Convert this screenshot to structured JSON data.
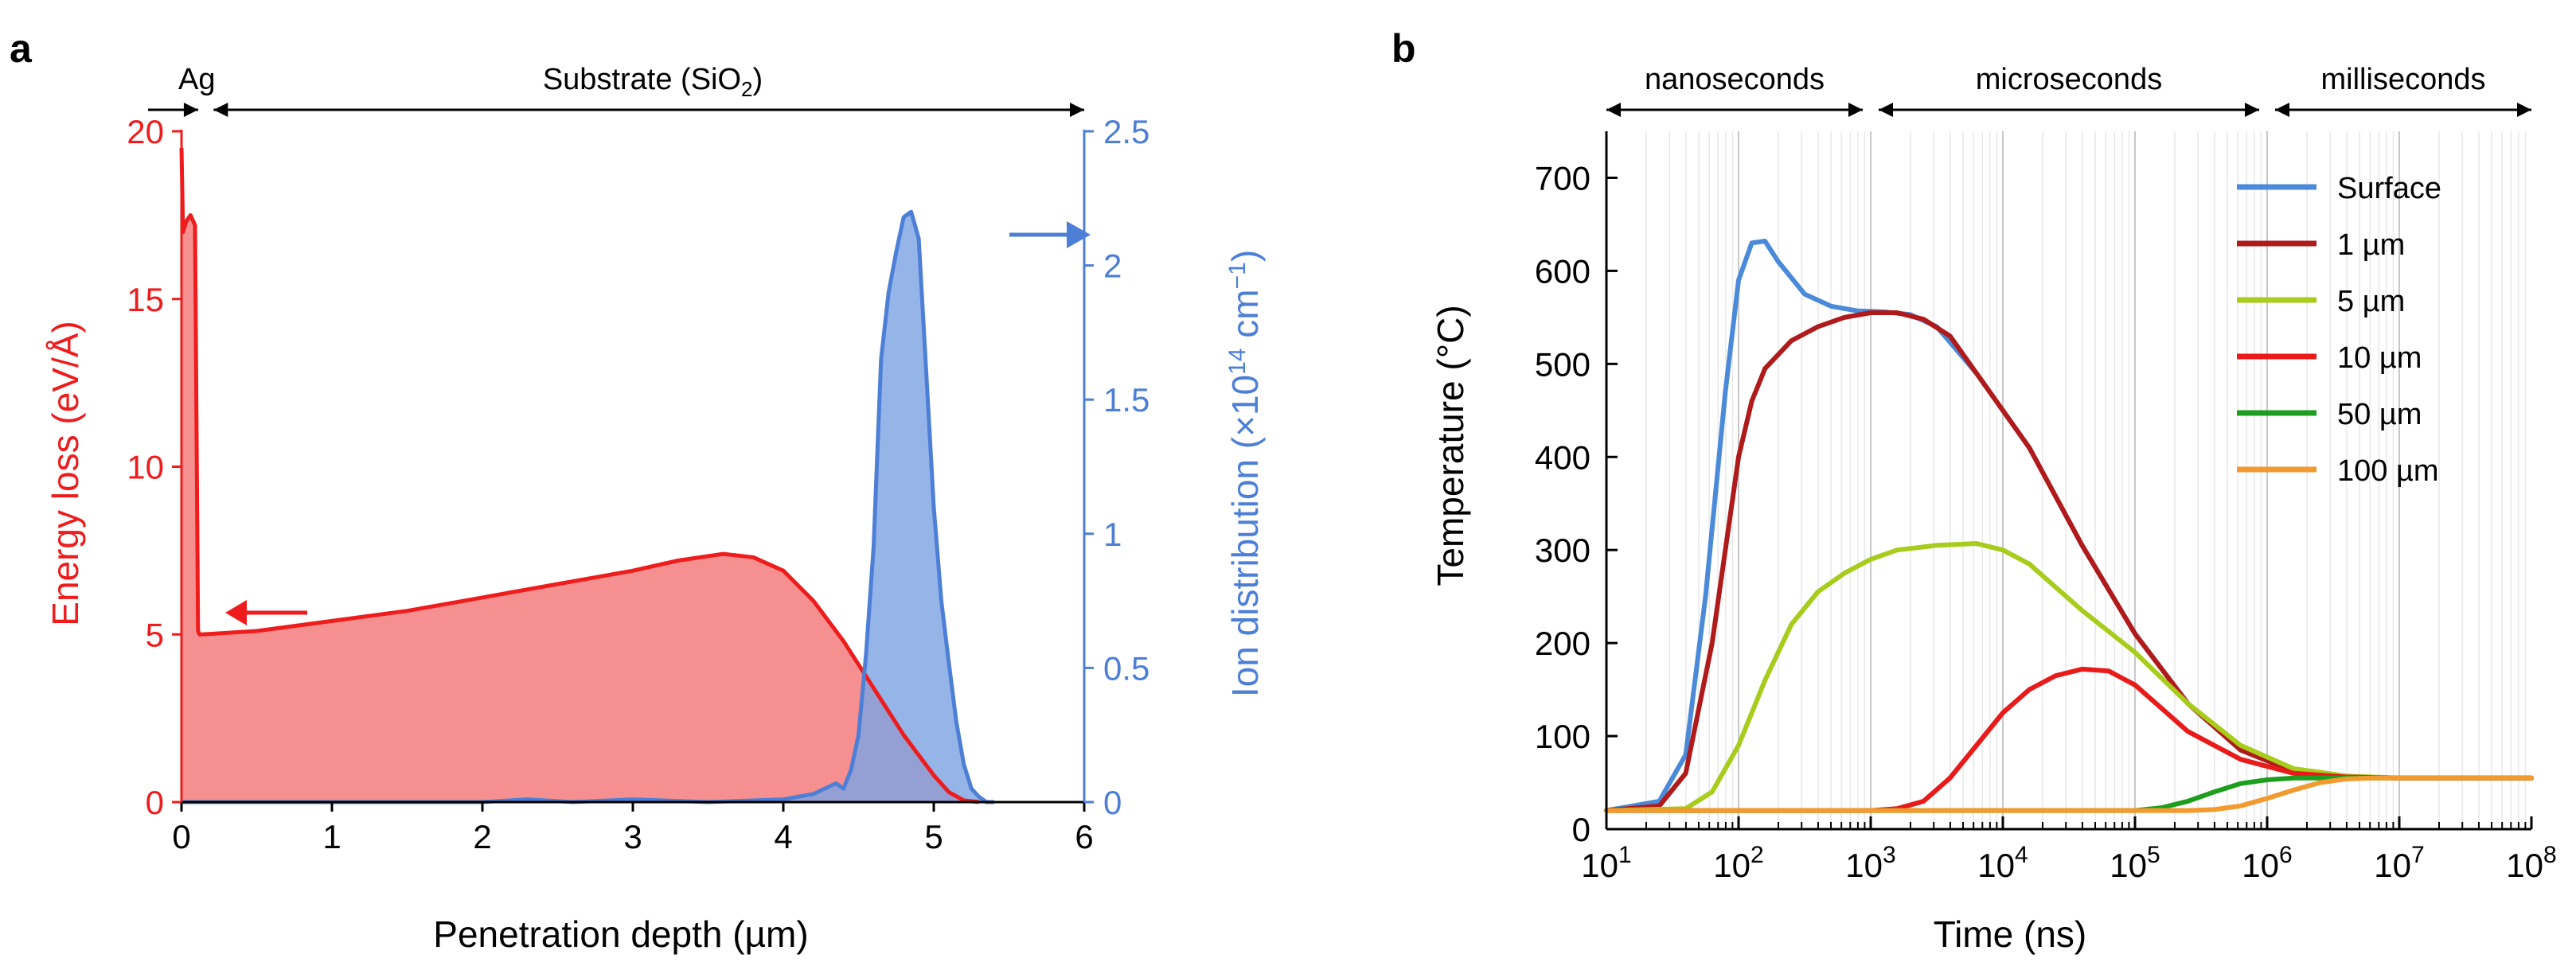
{
  "chart_data": [
    {
      "panel": "a",
      "type": "area",
      "xlabel": "Penetration depth (µm)",
      "ylabel_left": "Energy loss (eV/Å)",
      "ylabel_right": "Ion distribution (×10",
      "ylabel_right_exp": "14",
      "ylabel_right_unit": " cm",
      "ylabel_right_unit_exp": "−1",
      "ylabel_right_close": ")",
      "xlim": [
        0,
        6
      ],
      "ylim_left": [
        0,
        20
      ],
      "ylim_right": [
        0,
        2.5
      ],
      "xticks": [
        "0",
        "1",
        "2",
        "3",
        "4",
        "5",
        "6"
      ],
      "yticks_left": [
        "0",
        "5",
        "10",
        "15",
        "20"
      ],
      "yticks_right": [
        "0",
        "0.5",
        "1",
        "1.5",
        "2",
        "2.5"
      ],
      "regions": [
        {
          "label": "Ag",
          "range": [
            0,
            0.1
          ]
        },
        {
          "label_main": "Substrate (SiO",
          "label_sub": "2",
          "label_end": ")",
          "range": [
            0.15,
            6
          ]
        }
      ],
      "colors": {
        "energy": "#ee1c1c",
        "energy_fill": "#f58a8a",
        "ion": "#4d7fd6",
        "ion_fill": "#7ea3e3"
      },
      "series": [
        {
          "name": "Energy loss",
          "axis": "left",
          "x": [
            0,
            0.01,
            0.03,
            0.06,
            0.09,
            0.11,
            0.12,
            0.13,
            0.5,
            1,
            1.5,
            2,
            2.5,
            3,
            3.3,
            3.6,
            3.8,
            4.0,
            4.2,
            4.4,
            4.6,
            4.8,
            5.0,
            5.1,
            5.2,
            5.3
          ],
          "values": [
            19.5,
            17.0,
            17.3,
            17.5,
            17.2,
            5.1,
            5.0,
            5.0,
            5.1,
            5.4,
            5.7,
            6.1,
            6.5,
            6.9,
            7.2,
            7.4,
            7.3,
            6.9,
            6.0,
            4.8,
            3.4,
            2.0,
            0.8,
            0.3,
            0.05,
            0
          ]
        },
        {
          "name": "Ion distribution",
          "axis": "right",
          "x": [
            0,
            0.5,
            1,
            1.5,
            2,
            2.3,
            2.6,
            3,
            3.5,
            4,
            4.2,
            4.35,
            4.4,
            4.45,
            4.5,
            4.55,
            4.6,
            4.65,
            4.7,
            4.75,
            4.8,
            4.85,
            4.9,
            4.95,
            5.0,
            5.05,
            5.1,
            5.15,
            5.2,
            5.25,
            5.3,
            5.35,
            5.4
          ],
          "values": [
            0,
            0,
            0,
            0,
            0,
            0.01,
            0,
            0.01,
            0,
            0.01,
            0.03,
            0.07,
            0.05,
            0.12,
            0.25,
            0.55,
            0.95,
            1.65,
            1.9,
            2.05,
            2.18,
            2.2,
            2.1,
            1.6,
            1.1,
            0.75,
            0.52,
            0.3,
            0.14,
            0.05,
            0.02,
            0,
            0
          ]
        }
      ]
    },
    {
      "panel": "b",
      "type": "line",
      "xscale": "log",
      "xlabel": "Time (ns)",
      "ylabel": "Temperature (°C)",
      "xlim": [
        10,
        100000000
      ],
      "ylim": [
        0,
        750
      ],
      "xtick_exponents": [
        "1",
        "2",
        "3",
        "4",
        "5",
        "6",
        "7",
        "8"
      ],
      "xtick_base": "10",
      "yticks": [
        "0",
        "100",
        "200",
        "300",
        "400",
        "500",
        "600",
        "700"
      ],
      "regions": [
        {
          "label": "nanoseconds",
          "range": [
            10,
            1000
          ]
        },
        {
          "label": "microseconds",
          "range": [
            1000,
            1000000
          ]
        },
        {
          "label": "milliseconds",
          "range": [
            1000000,
            100000000
          ]
        }
      ],
      "legend_position": "top-right",
      "series": [
        {
          "name": "Surface",
          "color": "#4a8ad9",
          "logx": [
            1,
            1.4,
            1.6,
            1.75,
            1.9,
            2.0,
            2.1,
            2.2,
            2.3,
            2.5,
            2.7,
            2.9,
            3.1,
            3.3,
            3.5,
            3.8,
            4.2,
            4.6,
            5.0,
            5.4,
            5.8,
            6.2,
            6.6,
            7,
            8
          ],
          "values": [
            20,
            30,
            80,
            250,
            470,
            590,
            630,
            632,
            610,
            575,
            562,
            557,
            556,
            553,
            540,
            490,
            410,
            305,
            210,
            135,
            85,
            62,
            56,
            55,
            55
          ]
        },
        {
          "name": "1 µm",
          "color": "#b01a1a",
          "logx": [
            1,
            1.4,
            1.6,
            1.8,
            2.0,
            2.1,
            2.2,
            2.4,
            2.6,
            2.8,
            3.0,
            3.2,
            3.4,
            3.6,
            3.8,
            4.2,
            4.6,
            5.0,
            5.4,
            5.8,
            6.2,
            6.6,
            7,
            8
          ],
          "values": [
            20,
            25,
            60,
            200,
            400,
            460,
            495,
            525,
            540,
            550,
            555,
            555,
            548,
            530,
            490,
            410,
            305,
            210,
            135,
            85,
            62,
            56,
            55,
            55
          ]
        },
        {
          "name": "5 µm",
          "color": "#a8cc1c",
          "logx": [
            1,
            1.6,
            1.8,
            2.0,
            2.2,
            2.4,
            2.6,
            2.8,
            3.0,
            3.2,
            3.5,
            3.8,
            4.0,
            4.2,
            4.4,
            4.6,
            5.0,
            5.4,
            5.8,
            6.2,
            6.6,
            7,
            8
          ],
          "values": [
            20,
            22,
            40,
            90,
            160,
            220,
            255,
            275,
            290,
            300,
            305,
            307,
            300,
            285,
            260,
            235,
            190,
            135,
            90,
            65,
            57,
            55,
            55
          ]
        },
        {
          "name": "10 µm",
          "color": "#e81a1a",
          "logx": [
            1,
            3.0,
            3.2,
            3.4,
            3.6,
            3.8,
            4.0,
            4.2,
            4.4,
            4.6,
            4.8,
            5.0,
            5.2,
            5.4,
            5.8,
            6.2,
            6.6,
            7,
            8
          ],
          "values": [
            20,
            20,
            22,
            30,
            55,
            90,
            125,
            150,
            165,
            172,
            170,
            155,
            130,
            105,
            75,
            60,
            56,
            55,
            55
          ]
        },
        {
          "name": "50 µm",
          "color": "#1e9e1e",
          "logx": [
            1,
            4.8,
            5.0,
            5.2,
            5.4,
            5.6,
            5.8,
            6.0,
            6.2,
            6.4,
            6.6,
            7,
            8
          ],
          "values": [
            20,
            20,
            20,
            23,
            30,
            40,
            49,
            53,
            55,
            55,
            55,
            55,
            55
          ]
        },
        {
          "name": "100 µm",
          "color": "#f29a2e",
          "logx": [
            1,
            5.4,
            5.6,
            5.8,
            6.0,
            6.2,
            6.4,
            6.6,
            6.8,
            7,
            8
          ],
          "values": [
            20,
            20,
            21,
            25,
            33,
            42,
            50,
            54,
            55,
            55,
            55
          ]
        }
      ]
    }
  ]
}
